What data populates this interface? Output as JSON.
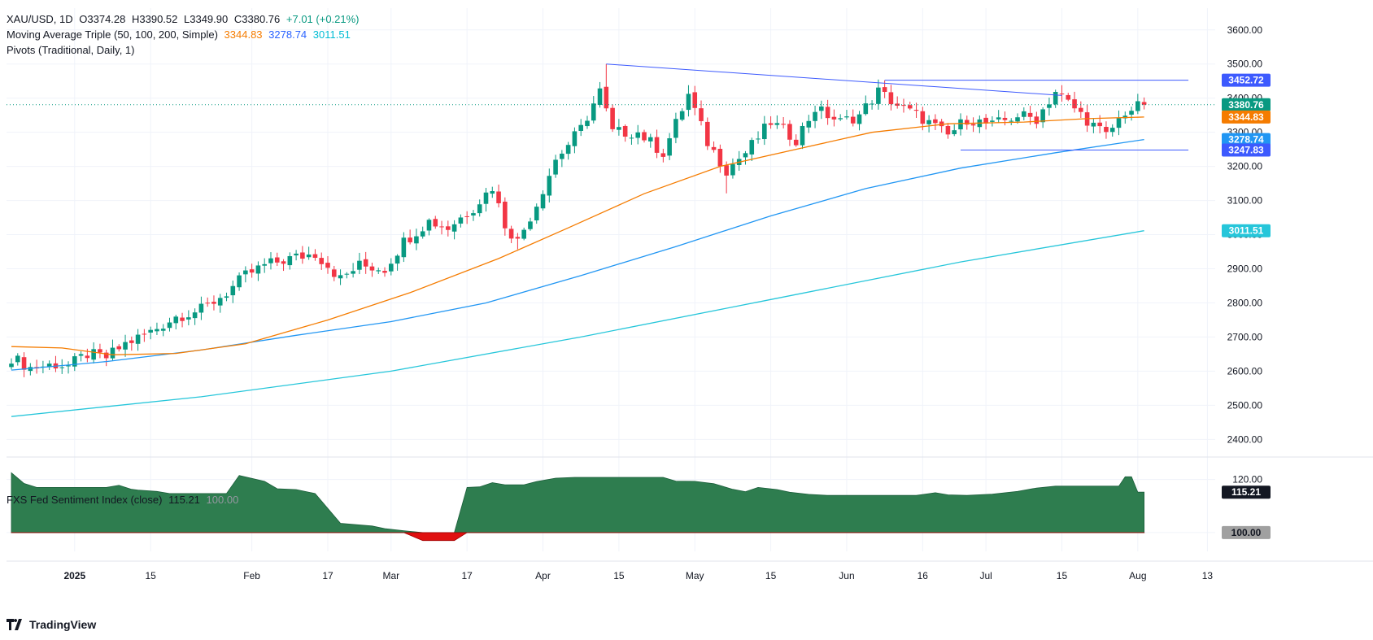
{
  "legend": {
    "symbol": "XAU/USD, 1D",
    "open": "O3374.28",
    "high": "H3390.52",
    "low": "L3349.90",
    "close": "C3380.76",
    "change": "+7.01 (+0.21%)",
    "ma_label": "Moving Average Triple (50, 100, 200, Simple)",
    "ma50": "3344.83",
    "ma100": "3278.74",
    "ma200": "3011.51",
    "pivots": "Pivots (Traditional, Daily, 1)"
  },
  "indicator_legend": {
    "label": "FXS Fed Sentiment Index (close)",
    "value": "115.21",
    "baseline": "100.00"
  },
  "footer": {
    "brand": "TradingView"
  },
  "colors": {
    "up": "#089981",
    "down": "#f23645",
    "ma50": "#f57c00",
    "ma100": "#2196f3",
    "ma200": "#26c6da",
    "trendline": "#3d5afe",
    "sentiment_fill": "#2e7d4f",
    "sentiment_neg": "#e01010"
  },
  "chart_data": [
    {
      "type": "candlestick",
      "title": "XAU/USD, 1D",
      "y_ticks": [
        2400,
        2500,
        2600,
        2700,
        2800,
        2900,
        3000,
        3100,
        3200,
        3300,
        3400,
        3500,
        3600
      ],
      "ylim": [
        2365,
        3640
      ],
      "x_ticks": [
        "2025",
        "15",
        "Feb",
        "17",
        "Mar",
        "17",
        "Apr",
        "15",
        "May",
        "15",
        "Jun",
        "16",
        "Jul",
        "15",
        "Aug",
        "13"
      ],
      "price_labels": [
        {
          "value": 3452.72,
          "text": "3452.72",
          "role": "pivot"
        },
        {
          "value": 3380.76,
          "text": "3380.76",
          "role": "last"
        },
        {
          "value": 3344.83,
          "text": "3344.83",
          "role": "ma50"
        },
        {
          "value": 3278.74,
          "text": "3278.74",
          "role": "ma100"
        },
        {
          "value": 3247.83,
          "text": "3247.83",
          "role": "pivot"
        },
        {
          "value": 3011.51,
          "text": "3011.51",
          "role": "ma200"
        }
      ],
      "anchors": [
        {
          "d": 0,
          "c": 2640
        },
        {
          "d": 3,
          "c": 2610
        },
        {
          "d": 7,
          "c": 2620
        },
        {
          "d": 9,
          "c": 2615
        },
        {
          "d": 12,
          "c": 2650
        },
        {
          "d": 15,
          "c": 2640
        },
        {
          "d": 18,
          "c": 2680
        },
        {
          "d": 22,
          "c": 2715
        },
        {
          "d": 26,
          "c": 2760
        },
        {
          "d": 30,
          "c": 2780
        },
        {
          "d": 34,
          "c": 2830
        },
        {
          "d": 37,
          "c": 2880
        },
        {
          "d": 40,
          "c": 2910
        },
        {
          "d": 44,
          "c": 2930
        },
        {
          "d": 48,
          "c": 2945
        },
        {
          "d": 50,
          "c": 2910
        },
        {
          "d": 52,
          "c": 2870
        },
        {
          "d": 55,
          "c": 2910
        },
        {
          "d": 59,
          "c": 2900
        },
        {
          "d": 62,
          "c": 2980
        },
        {
          "d": 66,
          "c": 3040
        },
        {
          "d": 69,
          "c": 3020
        },
        {
          "d": 73,
          "c": 3080
        },
        {
          "d": 76,
          "c": 3140
        },
        {
          "d": 78,
          "c": 3030
        },
        {
          "d": 80,
          "c": 2980
        },
        {
          "d": 83,
          "c": 3090
        },
        {
          "d": 86,
          "c": 3220
        },
        {
          "d": 90,
          "c": 3310
        },
        {
          "d": 93,
          "c": 3420
        },
        {
          "d": 95,
          "c": 3300
        },
        {
          "d": 99,
          "c": 3300
        },
        {
          "d": 103,
          "c": 3240
        },
        {
          "d": 107,
          "c": 3410
        },
        {
          "d": 110,
          "c": 3270
        },
        {
          "d": 113,
          "c": 3190
        },
        {
          "d": 116,
          "c": 3240
        },
        {
          "d": 120,
          "c": 3330
        },
        {
          "d": 124,
          "c": 3280
        },
        {
          "d": 127,
          "c": 3370
        },
        {
          "d": 131,
          "c": 3330
        },
        {
          "d": 134,
          "c": 3350
        },
        {
          "d": 137,
          "c": 3420
        },
        {
          "d": 140,
          "c": 3380
        },
        {
          "d": 144,
          "c": 3340
        },
        {
          "d": 148,
          "c": 3290
        },
        {
          "d": 151,
          "c": 3340
        },
        {
          "d": 155,
          "c": 3320
        },
        {
          "d": 159,
          "c": 3350
        },
        {
          "d": 162,
          "c": 3340
        },
        {
          "d": 165,
          "c": 3420
        },
        {
          "d": 168,
          "c": 3370
        },
        {
          "d": 171,
          "c": 3320
        },
        {
          "d": 173,
          "c": 3290
        },
        {
          "d": 176,
          "c": 3360
        },
        {
          "d": 178,
          "c": 3374
        },
        {
          "d": 179,
          "c": 3380.76
        }
      ],
      "spikes": [
        {
          "d": 94,
          "h": 3500
        },
        {
          "d": 107,
          "h": 3438
        },
        {
          "d": 113,
          "l": 3121
        },
        {
          "d": 138,
          "h": 3452
        },
        {
          "d": 166,
          "h": 3438
        },
        {
          "d": 80,
          "l": 2957
        }
      ],
      "moving_averages": {
        "ma50": [
          {
            "d": 0,
            "v": 2672
          },
          {
            "d": 8,
            "v": 2668
          },
          {
            "d": 16,
            "v": 2648
          },
          {
            "d": 26,
            "v": 2652
          },
          {
            "d": 37,
            "v": 2680
          },
          {
            "d": 50,
            "v": 2750
          },
          {
            "d": 63,
            "v": 2830
          },
          {
            "d": 77,
            "v": 2930
          },
          {
            "d": 88,
            "v": 3020
          },
          {
            "d": 100,
            "v": 3120
          },
          {
            "d": 112,
            "v": 3200
          },
          {
            "d": 124,
            "v": 3250
          },
          {
            "d": 136,
            "v": 3300
          },
          {
            "d": 148,
            "v": 3325
          },
          {
            "d": 160,
            "v": 3330
          },
          {
            "d": 170,
            "v": 3340
          },
          {
            "d": 179,
            "v": 3344.83
          }
        ],
        "ma100": [
          {
            "d": 0,
            "v": 2603
          },
          {
            "d": 15,
            "v": 2628
          },
          {
            "d": 30,
            "v": 2662
          },
          {
            "d": 45,
            "v": 2705
          },
          {
            "d": 60,
            "v": 2745
          },
          {
            "d": 75,
            "v": 2800
          },
          {
            "d": 90,
            "v": 2880
          },
          {
            "d": 105,
            "v": 2965
          },
          {
            "d": 120,
            "v": 3055
          },
          {
            "d": 135,
            "v": 3135
          },
          {
            "d": 150,
            "v": 3195
          },
          {
            "d": 165,
            "v": 3240
          },
          {
            "d": 179,
            "v": 3278.74
          }
        ],
        "ma200": [
          {
            "d": 0,
            "v": 2467
          },
          {
            "d": 30,
            "v": 2525
          },
          {
            "d": 60,
            "v": 2600
          },
          {
            "d": 90,
            "v": 2700
          },
          {
            "d": 120,
            "v": 2810
          },
          {
            "d": 150,
            "v": 2920
          },
          {
            "d": 179,
            "v": 3011.51
          }
        ]
      },
      "trendlines": [
        {
          "from": {
            "d": 94,
            "v": 3500
          },
          "to": {
            "d": 166,
            "v": 3408
          }
        },
        {
          "from": {
            "d": 138,
            "v": 3452.72
          },
          "to": {
            "d": 186,
            "v": 3452.72
          }
        },
        {
          "from": {
            "d": 150,
            "v": 3247.83
          },
          "to": {
            "d": 186,
            "v": 3247.83
          }
        }
      ]
    },
    {
      "type": "area",
      "title": "FXS Fed Sentiment Index (close)",
      "baseline": 100,
      "y_ticks": [
        100,
        120
      ],
      "ylim": [
        96,
        126
      ],
      "points": [
        {
          "d": 0,
          "v": 122.5
        },
        {
          "d": 2,
          "v": 118.5
        },
        {
          "d": 4,
          "v": 117
        },
        {
          "d": 15,
          "v": 117
        },
        {
          "d": 17,
          "v": 117.8
        },
        {
          "d": 19,
          "v": 116.3
        },
        {
          "d": 20,
          "v": 116
        },
        {
          "d": 23,
          "v": 115.5
        },
        {
          "d": 25,
          "v": 114.7
        },
        {
          "d": 34,
          "v": 114.7
        },
        {
          "d": 36,
          "v": 121.5
        },
        {
          "d": 40,
          "v": 119.3
        },
        {
          "d": 42,
          "v": 116.5
        },
        {
          "d": 45,
          "v": 116.2
        },
        {
          "d": 48,
          "v": 114.7
        },
        {
          "d": 52,
          "v": 103.5
        },
        {
          "d": 57,
          "v": 102.5
        },
        {
          "d": 59,
          "v": 101.5
        },
        {
          "d": 62,
          "v": 100.7
        },
        {
          "d": 65,
          "v": 97
        },
        {
          "d": 70,
          "v": 97
        },
        {
          "d": 72,
          "v": 117
        },
        {
          "d": 74,
          "v": 117.2
        },
        {
          "d": 76,
          "v": 118.8
        },
        {
          "d": 78,
          "v": 118
        },
        {
          "d": 81,
          "v": 118
        },
        {
          "d": 83,
          "v": 119.2
        },
        {
          "d": 86,
          "v": 120.5
        },
        {
          "d": 89,
          "v": 120.8
        },
        {
          "d": 103,
          "v": 120.8
        },
        {
          "d": 105,
          "v": 119.4
        },
        {
          "d": 108,
          "v": 119.3
        },
        {
          "d": 111,
          "v": 118.4
        },
        {
          "d": 114,
          "v": 116.3
        },
        {
          "d": 116,
          "v": 115.4
        },
        {
          "d": 118,
          "v": 117
        },
        {
          "d": 121,
          "v": 116.2
        },
        {
          "d": 123,
          "v": 115.2
        },
        {
          "d": 126,
          "v": 114.4
        },
        {
          "d": 129,
          "v": 114
        },
        {
          "d": 143,
          "v": 114
        },
        {
          "d": 146,
          "v": 115
        },
        {
          "d": 148,
          "v": 114.2
        },
        {
          "d": 151,
          "v": 114
        },
        {
          "d": 155,
          "v": 114.5
        },
        {
          "d": 159,
          "v": 115.5
        },
        {
          "d": 162,
          "v": 116.8
        },
        {
          "d": 165,
          "v": 117.5
        },
        {
          "d": 175,
          "v": 117.5
        },
        {
          "d": 176,
          "v": 121
        },
        {
          "d": 177,
          "v": 121
        },
        {
          "d": 178,
          "v": 115.21
        },
        {
          "d": 179,
          "v": 115.21
        }
      ]
    }
  ]
}
